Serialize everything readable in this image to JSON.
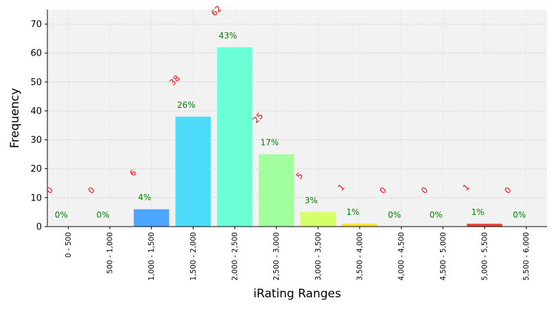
{
  "chart_data": {
    "type": "bar",
    "xlabel": "iRating Ranges",
    "ylabel": "Frequency",
    "ylim": [
      0,
      75
    ],
    "yticks": [
      0,
      10,
      20,
      30,
      40,
      50,
      60,
      70
    ],
    "grid": true,
    "categories": [
      "0 - 500",
      "500 - 1,000",
      "1,000 - 1,500",
      "1,500 - 2,000",
      "2,000 - 2,500",
      "2,500 - 3,000",
      "3,000 - 3,500",
      "3,500 - 4,000",
      "4,000 - 4,500",
      "4,500 - 5,000",
      "5,000 - 5,500",
      "5,500 - 6,000"
    ],
    "values": [
      0,
      0,
      6,
      38,
      62,
      25,
      5,
      1,
      0,
      0,
      1,
      0
    ],
    "percent_labels": [
      "0%",
      "0%",
      "4%",
      "26%",
      "43%",
      "17%",
      "3%",
      "1%",
      "0%",
      "0%",
      "1%",
      "0%"
    ],
    "bar_colors": [
      "#4a5bff",
      "#4a7dff",
      "#4da6ff",
      "#4ddcfa",
      "#6bffd6",
      "#a2ff9e",
      "#d4ff66",
      "#ffe033",
      "#ffb020",
      "#ff7a1a",
      "#e8453c",
      "#cc2020"
    ]
  }
}
